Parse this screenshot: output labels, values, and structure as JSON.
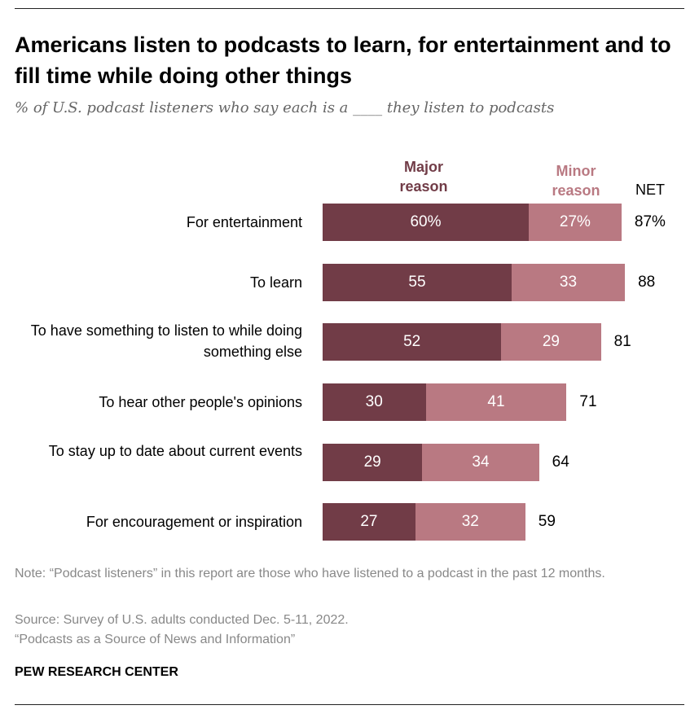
{
  "chart_data": {
    "type": "bar",
    "stacked": true,
    "orientation": "horizontal",
    "title": "Americans listen to podcasts to learn, for entertainment and to fill time while doing other things",
    "subtitle": "% of U.S. podcast listeners who say each is a ____ they listen to podcasts",
    "categories": [
      "For entertainment",
      "To learn",
      "To have something to listen to while doing something else",
      "To hear other people's opinions",
      "To stay up to date about current events",
      "For encouragement or inspiration"
    ],
    "series": [
      {
        "name": "Major reason",
        "color": "#713c47",
        "values": [
          60,
          55,
          52,
          30,
          29,
          27
        ],
        "labels": [
          "60%",
          "55",
          "52",
          "30",
          "29",
          "27"
        ]
      },
      {
        "name": "Minor reason",
        "color": "#b97982",
        "values": [
          27,
          33,
          29,
          41,
          34,
          32
        ],
        "labels": [
          "27%",
          "33",
          "29",
          "41",
          "34",
          "32"
        ]
      }
    ],
    "net": {
      "header": "NET",
      "values": [
        87,
        88,
        81,
        71,
        64,
        59
      ],
      "labels": [
        "87%",
        "88",
        "81",
        "71",
        "64",
        "59"
      ]
    },
    "legend_headers": {
      "major": "Major reason",
      "minor": "Minor reason"
    }
  },
  "notes": {
    "note": "Note: “Podcast listeners” in this report are those who have listened to a podcast in the past 12 months.",
    "source": "Source: Survey of U.S. adults conducted Dec. 5-11, 2022.",
    "report": "“Podcasts as a Source of News and Information”"
  },
  "brand": "PEW RESEARCH CENTER"
}
